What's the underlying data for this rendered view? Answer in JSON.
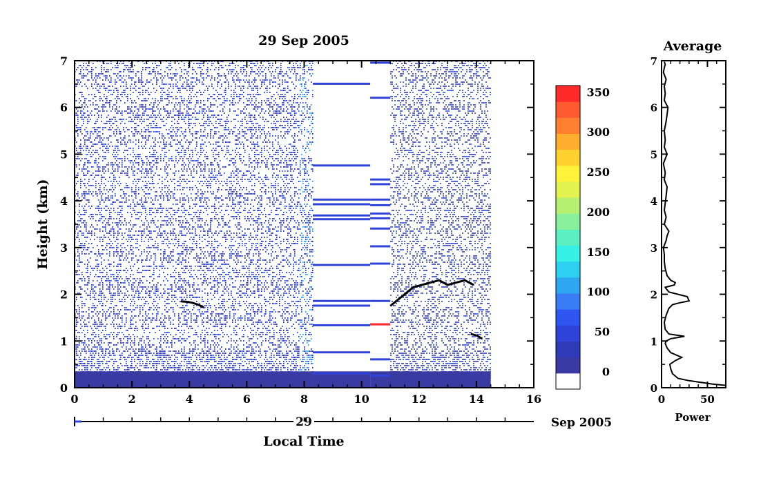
{
  "chart_data": [
    {
      "type": "heatmap",
      "title": "29 Sep 2005",
      "xlabel": "Local Time",
      "ylabel": "Height (km)",
      "xlim": [
        0,
        16
      ],
      "ylim": [
        0,
        7
      ],
      "x_ticks": [
        "0",
        "2",
        "4",
        "6",
        "8",
        "10",
        "12",
        "14",
        "16"
      ],
      "y_ticks": [
        "0",
        "1",
        "2",
        "3",
        "4",
        "5",
        "6",
        "7"
      ],
      "date_axis": {
        "day_label": "29",
        "month_label": "Sep 2005"
      },
      "data_coverage": [
        {
          "from": 0.0,
          "to": 8.3
        },
        {
          "from": 10.3,
          "to": 11.0
        },
        {
          "from": 11.0,
          "to": 14.5
        }
      ],
      "boundary_layer_top_km": 0.35,
      "cloud_traces": [
        {
          "x": [
            3.7,
            3.9,
            4.1,
            4.3,
            4.5
          ],
          "y": [
            1.85,
            1.84,
            1.82,
            1.78,
            1.72
          ]
        },
        {
          "x": [
            11.0,
            11.2,
            11.5,
            11.8,
            12.1,
            12.4,
            12.7,
            13.0,
            13.3,
            13.6,
            13.9
          ],
          "y": [
            1.75,
            1.85,
            2.0,
            2.15,
            2.2,
            2.25,
            2.3,
            2.2,
            2.25,
            2.3,
            2.2
          ]
        },
        {
          "x": [
            13.8,
            14.0,
            14.2
          ],
          "y": [
            1.15,
            1.12,
            1.05
          ]
        }
      ],
      "horizontal_lines_km": [
        6.5,
        4.75,
        4.02,
        3.92,
        3.68,
        3.6,
        2.62,
        1.85,
        1.75,
        1.33,
        0.75,
        0.3
      ],
      "right_lines_km": [
        6.95,
        6.2,
        4.45,
        4.35,
        4.02,
        3.9,
        3.72,
        3.62,
        3.4,
        3.02,
        2.65,
        1.85,
        1.35,
        0.6,
        0.25
      ]
    },
    {
      "type": "colorbar",
      "ticks": [
        "0",
        "50",
        "100",
        "150",
        "200",
        "250",
        "300",
        "350"
      ],
      "range": [
        0,
        380
      ],
      "colors": [
        "#ffffff",
        "#3a3aa3",
        "#2e3ab8",
        "#2f42d9",
        "#2f55f0",
        "#3a7cf5",
        "#2ea6f0",
        "#2dd0f0",
        "#37f0e6",
        "#5cf0c0",
        "#88f09a",
        "#b6f070",
        "#e4f250",
        "#fff23a",
        "#ffd230",
        "#ffae30",
        "#ff8030",
        "#ff5a30",
        "#ff2a2a"
      ]
    },
    {
      "type": "line",
      "title": "Average",
      "xlabel": "Power",
      "xlim": [
        0,
        70
      ],
      "ylim": [
        0,
        7
      ],
      "x_ticks": [
        "0",
        "50"
      ],
      "y_ticks": [
        "0",
        "1",
        "2",
        "3",
        "4",
        "5",
        "6",
        "7"
      ],
      "x": [
        70,
        55,
        30,
        18,
        12,
        10,
        9,
        15,
        22,
        10,
        6,
        4,
        5,
        10,
        25,
        8,
        4,
        3,
        5,
        8,
        12,
        20,
        30,
        28,
        18,
        8,
        5,
        4,
        8,
        14,
        15,
        10,
        6,
        4,
        3,
        3,
        2,
        5,
        6,
        8,
        3,
        5,
        3,
        4,
        5,
        6,
        3,
        4,
        2,
        6,
        3,
        4,
        3,
        5,
        6,
        7,
        3,
        4,
        3,
        5,
        2,
        3,
        4,
        3
      ],
      "y": [
        0.05,
        0.08,
        0.15,
        0.2,
        0.3,
        0.4,
        0.5,
        0.58,
        0.65,
        0.75,
        0.85,
        0.95,
        1.0,
        1.05,
        1.1,
        1.15,
        1.25,
        1.4,
        1.55,
        1.7,
        1.78,
        1.82,
        1.86,
        1.95,
        2.0,
        2.05,
        2.12,
        2.15,
        2.17,
        2.2,
        2.25,
        2.3,
        2.4,
        2.55,
        2.7,
        2.85,
        3.0,
        3.15,
        3.25,
        3.35,
        3.5,
        3.65,
        3.8,
        3.95,
        4.1,
        4.3,
        4.45,
        4.6,
        4.8,
        5.0,
        5.15,
        5.3,
        5.5,
        5.7,
        5.85,
        6.0,
        6.15,
        6.3,
        6.45,
        6.6,
        6.75,
        6.85,
        6.92,
        6.98
      ]
    }
  ]
}
